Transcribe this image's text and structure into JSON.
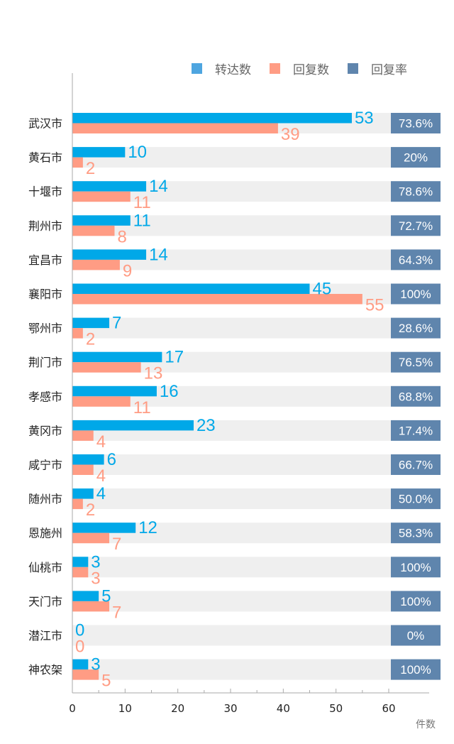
{
  "chart_data": {
    "type": "bar",
    "orientation": "horizontal",
    "title": "",
    "xlabel": "件数",
    "ylabel": "",
    "xlim": [
      0,
      67
    ],
    "x_ticks": [
      0,
      10,
      20,
      30,
      40,
      50,
      60
    ],
    "grid": false,
    "legend_position": "top-right",
    "categories": [
      "武汉市",
      "黄石市",
      "十堰市",
      "荆州市",
      "宜昌市",
      "襄阳市",
      "鄂州市",
      "荆门市",
      "孝感市",
      "黄冈市",
      "咸宁市",
      "随州市",
      "恩施州",
      "仙桃市",
      "天门市",
      "潜江市",
      "神农架"
    ],
    "series": [
      {
        "name": "转达数",
        "color": "#00a8e8",
        "values": [
          53,
          10,
          14,
          11,
          14,
          45,
          7,
          17,
          16,
          23,
          6,
          4,
          12,
          3,
          5,
          0,
          3
        ]
      },
      {
        "name": "回复数",
        "color": "#ff9c84",
        "values": [
          39,
          2,
          11,
          8,
          9,
          55,
          2,
          13,
          11,
          4,
          4,
          2,
          7,
          3,
          7,
          0,
          5
        ]
      },
      {
        "name": "回复率",
        "color": "#5f85ad",
        "values": [
          "73.6%",
          "20%",
          "78.6%",
          "72.7%",
          "64.3%",
          "100%",
          "28.6%",
          "76.5%",
          "68.8%",
          "17.4%",
          "66.7%",
          "50.0%",
          "58.3%",
          "100%",
          "100%",
          "0%",
          "100%"
        ]
      }
    ],
    "legend": [
      {
        "label": "转达数",
        "color": "#4ea5e0"
      },
      {
        "label": "回复数",
        "color": "#ff9c84"
      },
      {
        "label": "回复率",
        "color": "#5f85ad"
      }
    ]
  }
}
